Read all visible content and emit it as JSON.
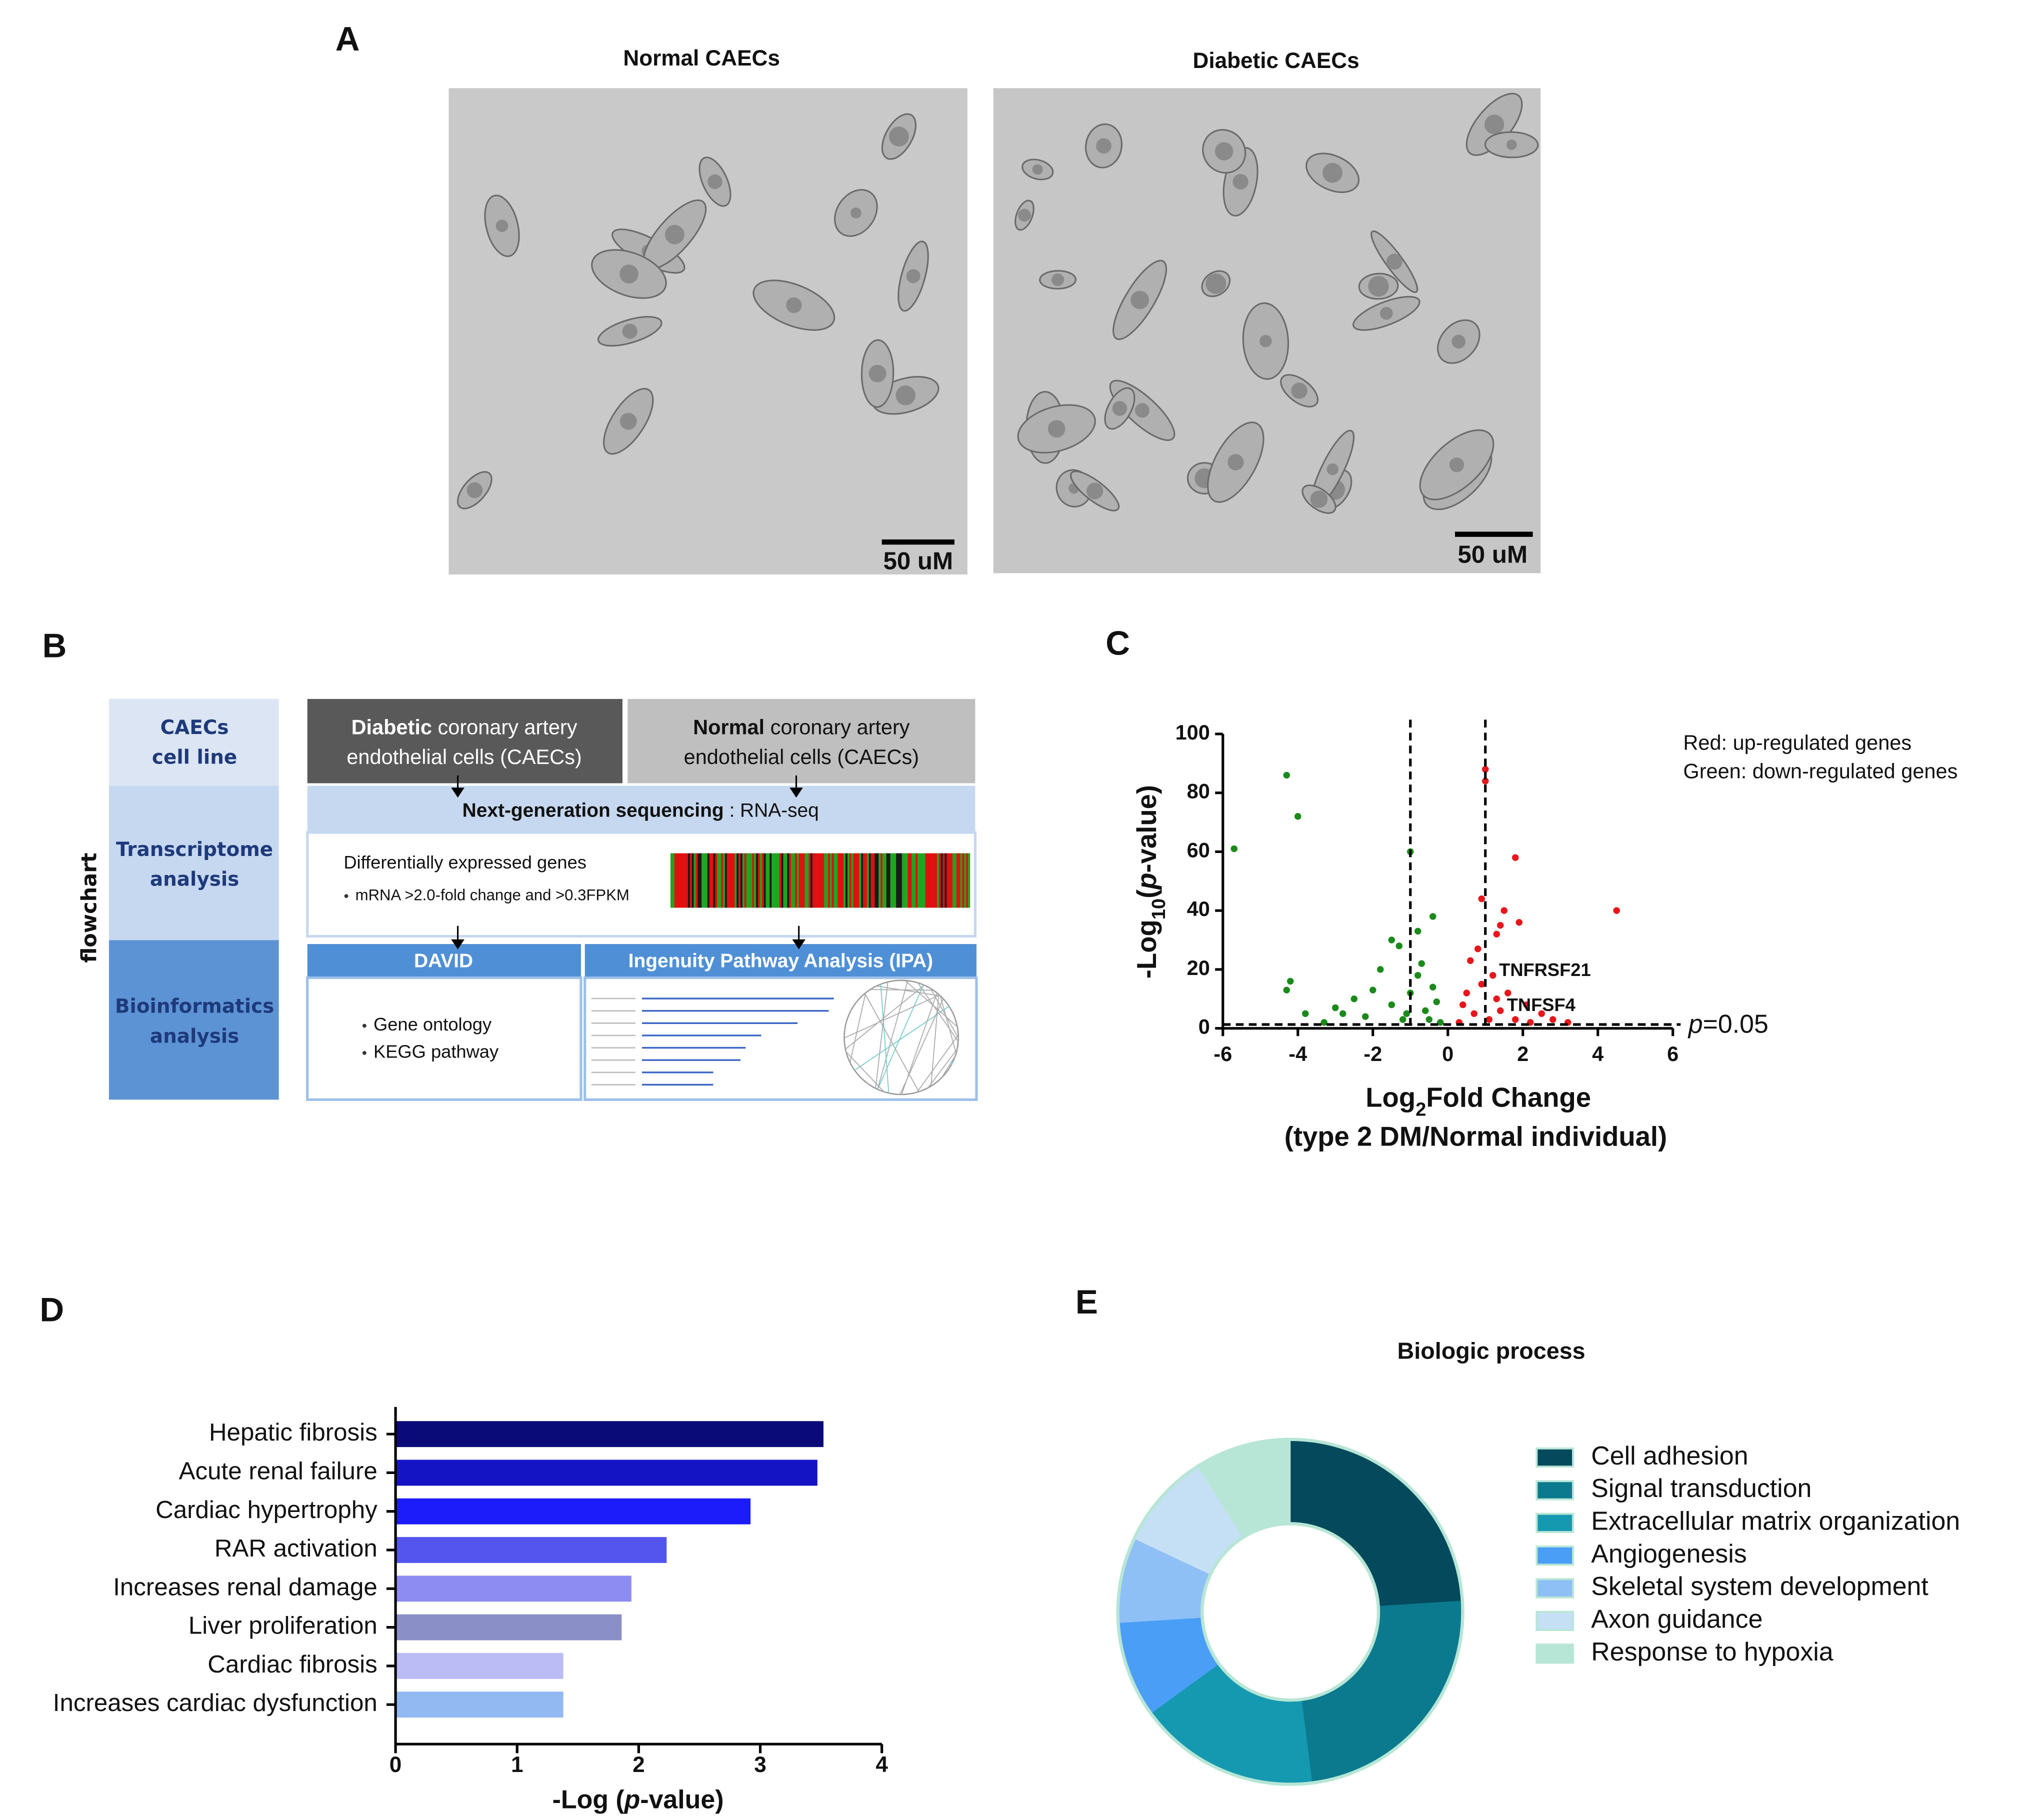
{
  "panel_labels": [
    "A",
    "B",
    "C",
    "D",
    "E"
  ],
  "panel_a": {
    "images": [
      {
        "title": "Normal CAECs",
        "scale_bar": "50 uM"
      },
      {
        "title": "Diabetic CAECs",
        "scale_bar": "50 uM"
      }
    ]
  },
  "flowchart": {
    "side_label": "flowchart",
    "rows": [
      [
        "CAECs",
        "cell line"
      ],
      [
        "Transcriptome",
        "analysis"
      ],
      [
        "Bioinformatics",
        "analysis"
      ]
    ],
    "diabetic": {
      "bold": "Diabetic",
      "rest": " coronary artery",
      "line2": "endothelial cells (CAECs)"
    },
    "normal": {
      "bold": "Normal",
      "rest": " coronary artery",
      "line2": "endothelial cells (CAECs)"
    },
    "ngs": {
      "bold": "Next-generation sequencing",
      "rest": " : RNA-seq"
    },
    "deg": {
      "title": "Differentially expressed genes",
      "criteria": "mRNA >2.0-fold change and >0.3FPKM"
    },
    "david": {
      "title": "DAVID",
      "items": [
        "Gene ontology",
        "KEGG pathway"
      ]
    },
    "ipa": {
      "title": "Ingenuity Pathway Analysis (IPA)"
    }
  },
  "chart_data": [
    {
      "type": "scatter",
      "xlabel_parts": [
        "Log",
        "2",
        "Fold Change"
      ],
      "xlabel_line2": "(type 2 DM/Normal individual)",
      "ylabel_parts": [
        "-Log",
        "10",
        "(",
        "p",
        "-value)"
      ],
      "xlim": [
        -6,
        6
      ],
      "xticks": [
        -6,
        -4,
        -2,
        0,
        2,
        4,
        6
      ],
      "ylim": [
        0,
        100
      ],
      "yticks": [
        0,
        20,
        40,
        60,
        80,
        100
      ],
      "fold_change_threshold": [
        -1,
        1
      ],
      "p_threshold_line": 1.3,
      "threshold_label_parts": [
        "p",
        "=0.05"
      ],
      "annotations": [
        {
          "text": "TNFRSF21"
        },
        {
          "text": "TNFSF4"
        }
      ],
      "series": [
        {
          "name": "Red: up-regulated genes",
          "color": "#e8161b",
          "x": [
            4.5,
            1.8,
            1,
            1,
            0.9,
            1.5,
            1.4,
            1.3,
            1.9,
            0.6,
            0.8,
            1.2,
            1.6,
            2.1,
            2.5,
            2.8,
            3.2,
            0.4,
            0.7,
            1.1,
            0.3,
            0.5,
            1.4,
            1.8,
            2.2,
            0.9,
            1.3
          ],
          "y": [
            40,
            58,
            88,
            84,
            44,
            40,
            35,
            32,
            36,
            23,
            27,
            18,
            12,
            8,
            5,
            3,
            2,
            8,
            5,
            3,
            2,
            12,
            6,
            3,
            2,
            15,
            10
          ]
        },
        {
          "name": "Green: down-regulated genes",
          "color": "#1a8a1a",
          "x": [
            -5.7,
            -4.3,
            -4,
            -1,
            -1.3,
            -0.4,
            -0.8,
            -1.5,
            -4.2,
            -4.3,
            -3.8,
            -3,
            -2.5,
            -2,
            -1.8,
            -1.5,
            -1,
            -0.8,
            -0.6,
            -0.3,
            -0.5,
            -0.2,
            -1.2,
            -2.2,
            -3.3,
            -2.8,
            -0.7,
            -1.1,
            -0.4
          ],
          "y": [
            61,
            86,
            72,
            60,
            28,
            38,
            33,
            30,
            16,
            13,
            5,
            7,
            10,
            13,
            20,
            8,
            12,
            18,
            6,
            9,
            3,
            2,
            3,
            4,
            2,
            5,
            22,
            5,
            14
          ]
        }
      ]
    },
    {
      "type": "bar",
      "orientation": "horizontal",
      "categories": [
        "Hepatic fibrosis",
        "Acute renal failure",
        "Cardiac hypertrophy",
        "RAR activation",
        "Increases renal damage",
        "Liver proliferation",
        "Cardiac fibrosis",
        "Increases cardiac dysfunction"
      ],
      "values": [
        3.52,
        3.47,
        2.92,
        2.23,
        1.94,
        1.86,
        1.38,
        1.38
      ],
      "colors": [
        "#0a0a78",
        "#1414c4",
        "#1c1cfa",
        "#5454ee",
        "#8c8cf2",
        "#8a8fc8",
        "#bbbbf5",
        "#92b9f2"
      ],
      "xlim": [
        0,
        4
      ],
      "xticks": [
        0,
        1,
        2,
        3,
        4
      ],
      "xlabel_parts": [
        "-Log (",
        "p",
        "-value)"
      ]
    },
    {
      "type": "pie",
      "donut": true,
      "title": "Biologic process",
      "categories": [
        "Cell adhesion",
        "Signal transduction",
        "Extracellular matrix organization",
        "Angiogenesis",
        "Skeletal system development",
        "Axon guidance",
        "Response to hypoxia"
      ],
      "values": [
        24,
        24,
        17,
        9,
        8,
        9,
        9
      ],
      "colors": [
        "#054a5c",
        "#0b7a8e",
        "#1599b0",
        "#4a9ef5",
        "#8fc0f5",
        "#c5dff5",
        "#b8e6d6"
      ]
    }
  ]
}
